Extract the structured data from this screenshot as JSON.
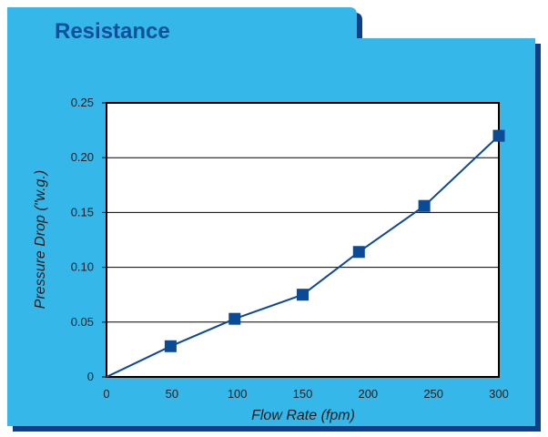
{
  "colors": {
    "panel": "#36b7ea",
    "shadow": "#0b3f8a",
    "title": "#0d4f9a",
    "marker": "#0b4a94",
    "line": "#0b4a94"
  },
  "chart_data": {
    "type": "line",
    "title": "Resistance",
    "xlabel": "Flow Rate (fpm)",
    "ylabel": "Pressure Drop (\"w.g.)",
    "xlim": [
      0,
      300
    ],
    "ylim": [
      0,
      0.25
    ],
    "xticks": [
      "0",
      "50",
      "100",
      "150",
      "200",
      "250",
      "300"
    ],
    "xtick_values": [
      0,
      50,
      100,
      150,
      200,
      250,
      300
    ],
    "yticks": [
      "0",
      "0.05",
      "0.10",
      "0.15",
      "0.20",
      "0.25"
    ],
    "ytick_values": [
      0,
      0.05,
      0.1,
      0.15,
      0.2,
      0.25
    ],
    "grid": "horizontal",
    "series": [
      {
        "x": [
          0,
          49,
          98,
          150,
          193,
          243,
          300
        ],
        "y": [
          0,
          0.028,
          0.053,
          0.075,
          0.114,
          0.156,
          0.22
        ],
        "marker": [
          false,
          true,
          true,
          true,
          true,
          true,
          true
        ]
      }
    ]
  }
}
